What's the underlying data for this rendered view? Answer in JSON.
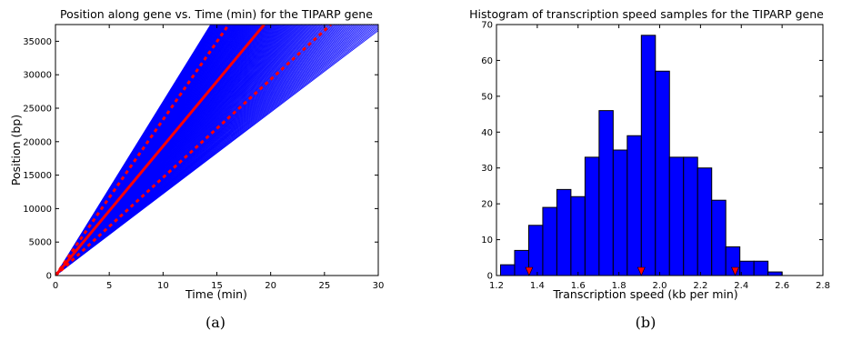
{
  "chart_data": [
    {
      "id": "a",
      "type": "line",
      "title": "Position along gene vs. Time (min) for the TIPARP gene",
      "xlabel": "Time (min)",
      "ylabel": "Position (bp)",
      "caption": "(a)",
      "xlim": [
        0,
        30
      ],
      "ylim": [
        0,
        37500
      ],
      "xticks": [
        0,
        5,
        10,
        15,
        20,
        25,
        30
      ],
      "yticks": [
        0,
        5000,
        10000,
        15000,
        20000,
        25000,
        30000,
        35000
      ],
      "trajectory_slopes_bp_per_min": {
        "min": 1220,
        "max": 2600
      },
      "series": [
        {
          "role": "samples",
          "color": "#0000ff",
          "style": "solid",
          "x": [
            0,
            30
          ],
          "slope_range_bp_per_min": [
            1220,
            2600
          ]
        },
        {
          "role": "mean",
          "color": "#ff0000",
          "style": "solid",
          "x": [
            0,
            19.4
          ],
          "y": [
            0,
            37500
          ]
        },
        {
          "role": "upper",
          "color": "#ff0000",
          "style": "dotted",
          "x": [
            0,
            16.1
          ],
          "y": [
            0,
            37500
          ]
        },
        {
          "role": "lower",
          "color": "#ff0000",
          "style": "dotted",
          "x": [
            0,
            25.6
          ],
          "y": [
            0,
            37500
          ]
        }
      ],
      "grid": false
    },
    {
      "id": "b",
      "type": "bar",
      "title": "Histogram of transcription speed samples for the TIPARP gene",
      "xlabel": "Transcription speed (kb per min)",
      "ylabel": "",
      "caption": "(b)",
      "xlim": [
        1.2,
        2.8
      ],
      "ylim": [
        0,
        70
      ],
      "xticks": [
        1.2,
        1.4,
        1.6,
        1.8,
        2.0,
        2.2,
        2.4,
        2.6,
        2.8
      ],
      "yticks": [
        0,
        10,
        20,
        30,
        40,
        50,
        60,
        70
      ],
      "bin_edges": [
        1.22,
        1.289,
        1.358,
        1.427,
        1.496,
        1.565,
        1.634,
        1.703,
        1.772,
        1.841,
        1.91,
        1.979,
        2.048,
        2.117,
        2.186,
        2.255,
        2.324,
        2.393,
        2.462,
        2.531,
        2.6
      ],
      "counts": [
        3,
        7,
        14,
        19,
        24,
        22,
        33,
        46,
        35,
        39,
        67,
        57,
        33,
        33,
        30,
        21,
        8,
        4,
        4,
        1
      ],
      "bar_color": "#0000ff",
      "markers": {
        "color": "#ff0000",
        "shape": "triangle-down",
        "x": [
          1.36,
          1.91,
          2.37
        ],
        "y": 0
      },
      "grid": false
    }
  ]
}
